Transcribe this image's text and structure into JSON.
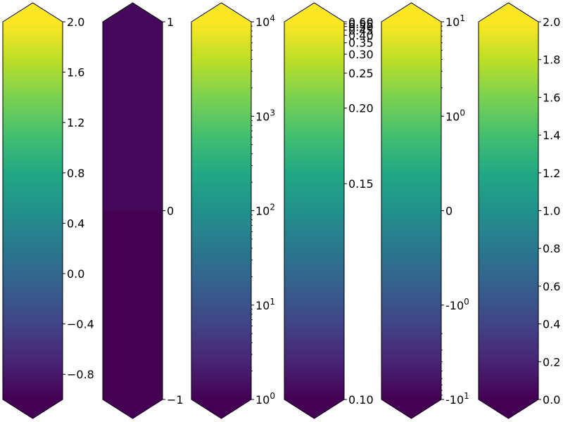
{
  "chart_data": [
    {
      "type": "colorbar",
      "colormap": "viridis",
      "scale": "linear",
      "range": [
        -1,
        2
      ],
      "extend": "both",
      "ticks": [
        {
          "value": -0.8,
          "label": "−0.8"
        },
        {
          "value": -0.4,
          "label": "−0.4"
        },
        {
          "value": 0.0,
          "label": "0.0"
        },
        {
          "value": 0.4,
          "label": "0.4"
        },
        {
          "value": 0.8,
          "label": "0.8"
        },
        {
          "value": 1.2,
          "label": "1.2"
        },
        {
          "value": 1.6,
          "label": "1.6"
        },
        {
          "value": 2.0,
          "label": "2.0"
        }
      ],
      "minor_ticks": []
    },
    {
      "type": "colorbar",
      "colormap": "viridis",
      "scale": "boundary",
      "range": [
        -1,
        1
      ],
      "boundaries": [
        -1,
        0,
        1
      ],
      "segment_colors": [
        "#440154",
        "#46085c"
      ],
      "extend": "both",
      "ticks": [
        {
          "value": -1,
          "label": "−1"
        },
        {
          "value": 0,
          "label": "0"
        },
        {
          "value": 1,
          "label": "1"
        }
      ],
      "minor_ticks": []
    },
    {
      "type": "colorbar",
      "colormap": "viridis",
      "scale": "log",
      "range": [
        1,
        10000
      ],
      "extend": "both",
      "ticks": [
        {
          "value": 1,
          "base": "10",
          "exp": "0"
        },
        {
          "value": 10,
          "base": "10",
          "exp": "1"
        },
        {
          "value": 100,
          "base": "10",
          "exp": "2"
        },
        {
          "value": 1000,
          "base": "10",
          "exp": "3"
        },
        {
          "value": 10000,
          "base": "10",
          "exp": "4"
        }
      ],
      "minor_ticks": [
        2,
        3,
        4,
        5,
        6,
        7,
        8,
        9,
        20,
        30,
        40,
        50,
        60,
        70,
        80,
        90,
        200,
        300,
        400,
        500,
        600,
        700,
        800,
        900,
        2000,
        3000,
        4000,
        5000,
        6000,
        7000,
        8000,
        9000
      ]
    },
    {
      "type": "colorbar",
      "colormap": "viridis",
      "scale": "power",
      "gamma": -2,
      "range": [
        0.1,
        0.6
      ],
      "extend": "both",
      "ticks": [
        {
          "value": 0.1,
          "label": "0.10"
        },
        {
          "value": 0.15,
          "label": "0.15"
        },
        {
          "value": 0.2,
          "label": "0.20"
        },
        {
          "value": 0.25,
          "label": "0.25"
        },
        {
          "value": 0.3,
          "label": "0.30"
        },
        {
          "value": 0.35,
          "label": "0.35"
        },
        {
          "value": 0.4,
          "label": "0.40"
        },
        {
          "value": 0.45,
          "label": "0.45"
        },
        {
          "value": 0.5,
          "label": "0.50"
        },
        {
          "value": 0.55,
          "label": "0.55"
        },
        {
          "value": 0.6,
          "label": "0.60"
        }
      ],
      "minor_ticks": []
    },
    {
      "type": "colorbar",
      "colormap": "viridis",
      "scale": "symlog",
      "linthresh": 1,
      "range": [
        -10,
        10
      ],
      "extend": "both",
      "ticks": [
        {
          "value": -10,
          "base": "-10",
          "exp": "1"
        },
        {
          "value": -1,
          "base": "-10",
          "exp": "0"
        },
        {
          "value": 0,
          "label": "0"
        },
        {
          "value": 1,
          "base": "10",
          "exp": "0"
        },
        {
          "value": 10,
          "base": "10",
          "exp": "1"
        }
      ],
      "minor_ticks": [
        -9,
        -8,
        -7,
        -6,
        -5,
        -4,
        -3,
        -2,
        2,
        3,
        4,
        5,
        6,
        7,
        8,
        9
      ]
    },
    {
      "type": "colorbar",
      "colormap": "viridis",
      "scale": "linear",
      "range": [
        0,
        2
      ],
      "extend": "both",
      "ticks": [
        {
          "value": 0.0,
          "label": "0.0"
        },
        {
          "value": 0.2,
          "label": "0.2"
        },
        {
          "value": 0.4,
          "label": "0.4"
        },
        {
          "value": 0.6,
          "label": "0.6"
        },
        {
          "value": 0.8,
          "label": "0.8"
        },
        {
          "value": 1.0,
          "label": "1.0"
        },
        {
          "value": 1.2,
          "label": "1.2"
        },
        {
          "value": 1.4,
          "label": "1.4"
        },
        {
          "value": 1.6,
          "label": "1.6"
        },
        {
          "value": 1.8,
          "label": "1.8"
        },
        {
          "value": 2.0,
          "label": "2.0"
        }
      ],
      "minor_ticks": []
    }
  ]
}
